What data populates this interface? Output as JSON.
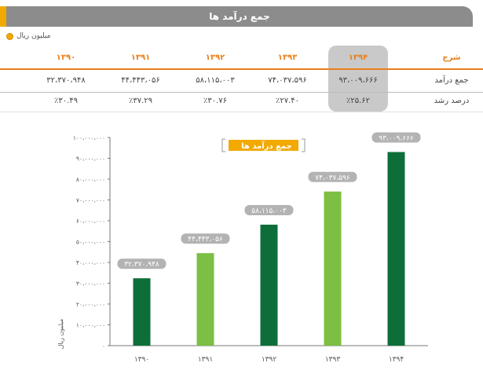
{
  "header": {
    "title": "جمع درآمد ها"
  },
  "unit_label": "میلیون ریال",
  "colors": {
    "accent": "#f2a900",
    "dark_green": "#0e6e3a",
    "light_green": "#7cbf42",
    "header_grey": "#8c8c8c"
  },
  "table": {
    "columns": [
      "شرح",
      "۱۳۹۴",
      "۱۳۹۳",
      "۱۳۹۲",
      "۱۳۹۱",
      "۱۳۹۰"
    ],
    "rows": [
      {
        "label": "جمع درآمد",
        "values": [
          "۹۳،۰۰۹،۶۶۶",
          "۷۴،۰۳۷،۵۹۶",
          "۵۸،۱۱۵،۰۰۳",
          "۴۴،۴۴۳،۰۵۶",
          "۳۲،۳۷۰،۹۴۸"
        ]
      },
      {
        "label": "درصد رشد",
        "values": [
          "٪۲۵.۶۲",
          "٪۲۷.۴۰",
          "٪۳۰.۷۶",
          "٪۳۷.۲۹",
          "٪۳۰.۴۹"
        ]
      }
    ]
  },
  "chart_data": {
    "type": "bar",
    "title": "جمع درآمد ها",
    "ylabel": "میلیون ریال",
    "categories": [
      "۱۳۹۰",
      "۱۳۹۱",
      "۱۳۹۲",
      "۱۳۹۳",
      "۱۳۹۴"
    ],
    "values": [
      32370948,
      44443056,
      58115003,
      74037596,
      93009666
    ],
    "value_labels": [
      "۳۲،۳۷۰،۹۴۸",
      "۴۴،۴۴۳،۰۵۶",
      "۵۸،۱۱۵،۰۰۳",
      "۷۴،۰۳۷،۵۹۶",
      "۹۳،۰۰۹،۶۶۶"
    ],
    "bar_colors": [
      "#0e6e3a",
      "#7cbf42",
      "#0e6e3a",
      "#7cbf42",
      "#0e6e3a"
    ],
    "ylim": [
      0,
      100000000
    ],
    "yticks": [
      0,
      10000000,
      20000000,
      30000000,
      40000000,
      50000000,
      60000000,
      70000000,
      80000000,
      90000000,
      100000000
    ],
    "ytick_labels": [
      "۰",
      "۱۰،۰۰۰،۰۰۰",
      "۲۰،۰۰۰،۰۰۰",
      "۳۰،۰۰۰،۰۰۰",
      "۴۰،۰۰۰،۰۰۰",
      "۵۰،۰۰۰،۰۰۰",
      "۶۰،۰۰۰،۰۰۰",
      "۷۰،۰۰۰،۰۰۰",
      "۸۰،۰۰۰،۰۰۰",
      "۹۰،۰۰۰،۰۰۰",
      "۱۰۰،۰۰۰،۰۰۰"
    ],
    "grid": false
  }
}
